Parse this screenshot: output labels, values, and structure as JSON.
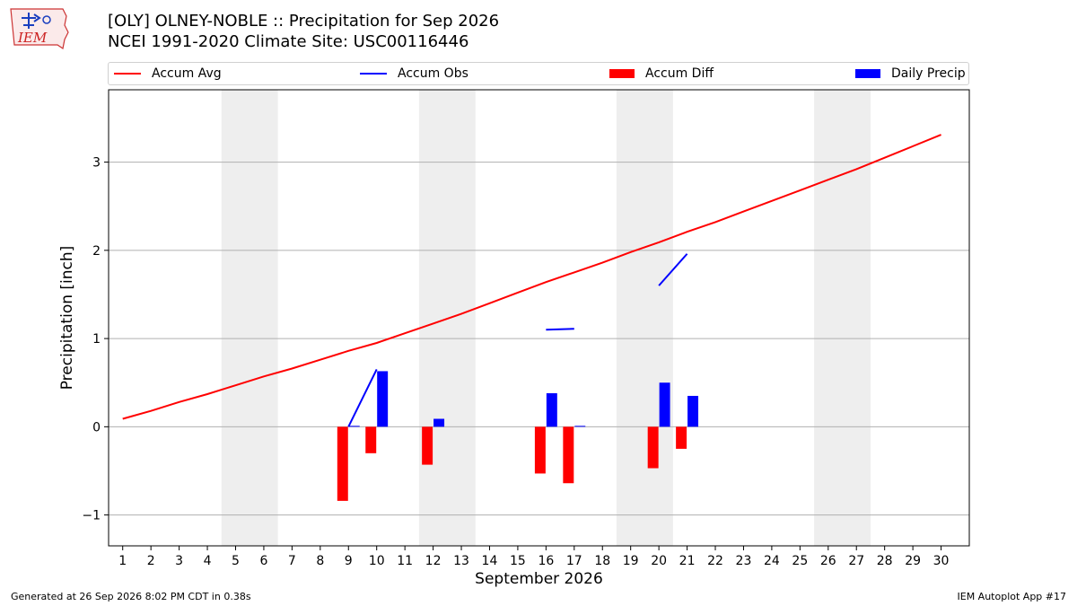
{
  "logo": {
    "text": "IEM"
  },
  "header": {
    "title_line1": "[OLY] OLNEY-NOBLE :: Precipitation for Sep 2026",
    "title_line2": "NCEI 1991-2020 Climate Site: USC00116446"
  },
  "footer": {
    "generated": "Generated at 26 Sep 2026 8:02 PM CDT in 0.38s",
    "app": "IEM Autoplot App #17"
  },
  "chart_data": {
    "type": "bar",
    "title": "[OLY] OLNEY-NOBLE :: Precipitation for Sep 2026",
    "subtitle": "NCEI 1991-2020 Climate Site: USC00116446",
    "xlabel": "September 2026",
    "ylabel": "Precipitation [inch]",
    "xlim": [
      0.5,
      31
    ],
    "ylim": [
      -1.35,
      3.82
    ],
    "x_ticks": [
      1,
      2,
      3,
      4,
      5,
      6,
      7,
      8,
      9,
      10,
      11,
      12,
      13,
      14,
      15,
      16,
      17,
      18,
      19,
      20,
      21,
      22,
      23,
      24,
      25,
      26,
      27,
      28,
      29,
      30
    ],
    "y_ticks": [
      -1,
      0,
      1,
      2,
      3
    ],
    "grid": "y",
    "legend_position": "top",
    "weekend_shading": [
      [
        5,
        6
      ],
      [
        12,
        13
      ],
      [
        19,
        20
      ],
      [
        26,
        27
      ]
    ],
    "series": [
      {
        "name": "Accum Avg",
        "kind": "line",
        "color": "#ff0000",
        "x": [
          1,
          2,
          3,
          4,
          5,
          6,
          7,
          8,
          9,
          10,
          11,
          12,
          13,
          14,
          15,
          16,
          17,
          18,
          19,
          20,
          21,
          22,
          23,
          24,
          25,
          26,
          27,
          28,
          29,
          30
        ],
        "values": [
          0.09,
          0.18,
          0.28,
          0.37,
          0.47,
          0.57,
          0.66,
          0.76,
          0.86,
          0.95,
          1.06,
          1.17,
          1.28,
          1.4,
          1.52,
          1.64,
          1.75,
          1.86,
          1.98,
          2.09,
          2.21,
          2.32,
          2.44,
          2.56,
          2.68,
          2.8,
          2.92,
          3.05,
          3.18,
          3.31
        ]
      },
      {
        "name": "Accum Obs",
        "kind": "line",
        "color": "#0000ff",
        "segments": [
          {
            "x": [
              9,
              10
            ],
            "values": [
              0.0,
              0.65
            ]
          },
          {
            "x": [
              16,
              17
            ],
            "values": [
              1.1,
              1.11
            ]
          },
          {
            "x": [
              20,
              21
            ],
            "values": [
              1.6,
              1.96
            ]
          }
        ]
      },
      {
        "name": "Accum Diff",
        "kind": "bar",
        "color": "#ff0000",
        "x": [
          9,
          10,
          12,
          16,
          17,
          20,
          21
        ],
        "values": [
          -0.84,
          -0.3,
          -0.43,
          -0.53,
          -0.64,
          -0.47,
          -0.25
        ]
      },
      {
        "name": "Daily Precip",
        "kind": "bar",
        "color": "#0000ff",
        "x": [
          9,
          10,
          12,
          16,
          17,
          20,
          21
        ],
        "values": [
          0.01,
          0.63,
          0.09,
          0.38,
          0.01,
          0.5,
          0.35
        ]
      }
    ]
  }
}
